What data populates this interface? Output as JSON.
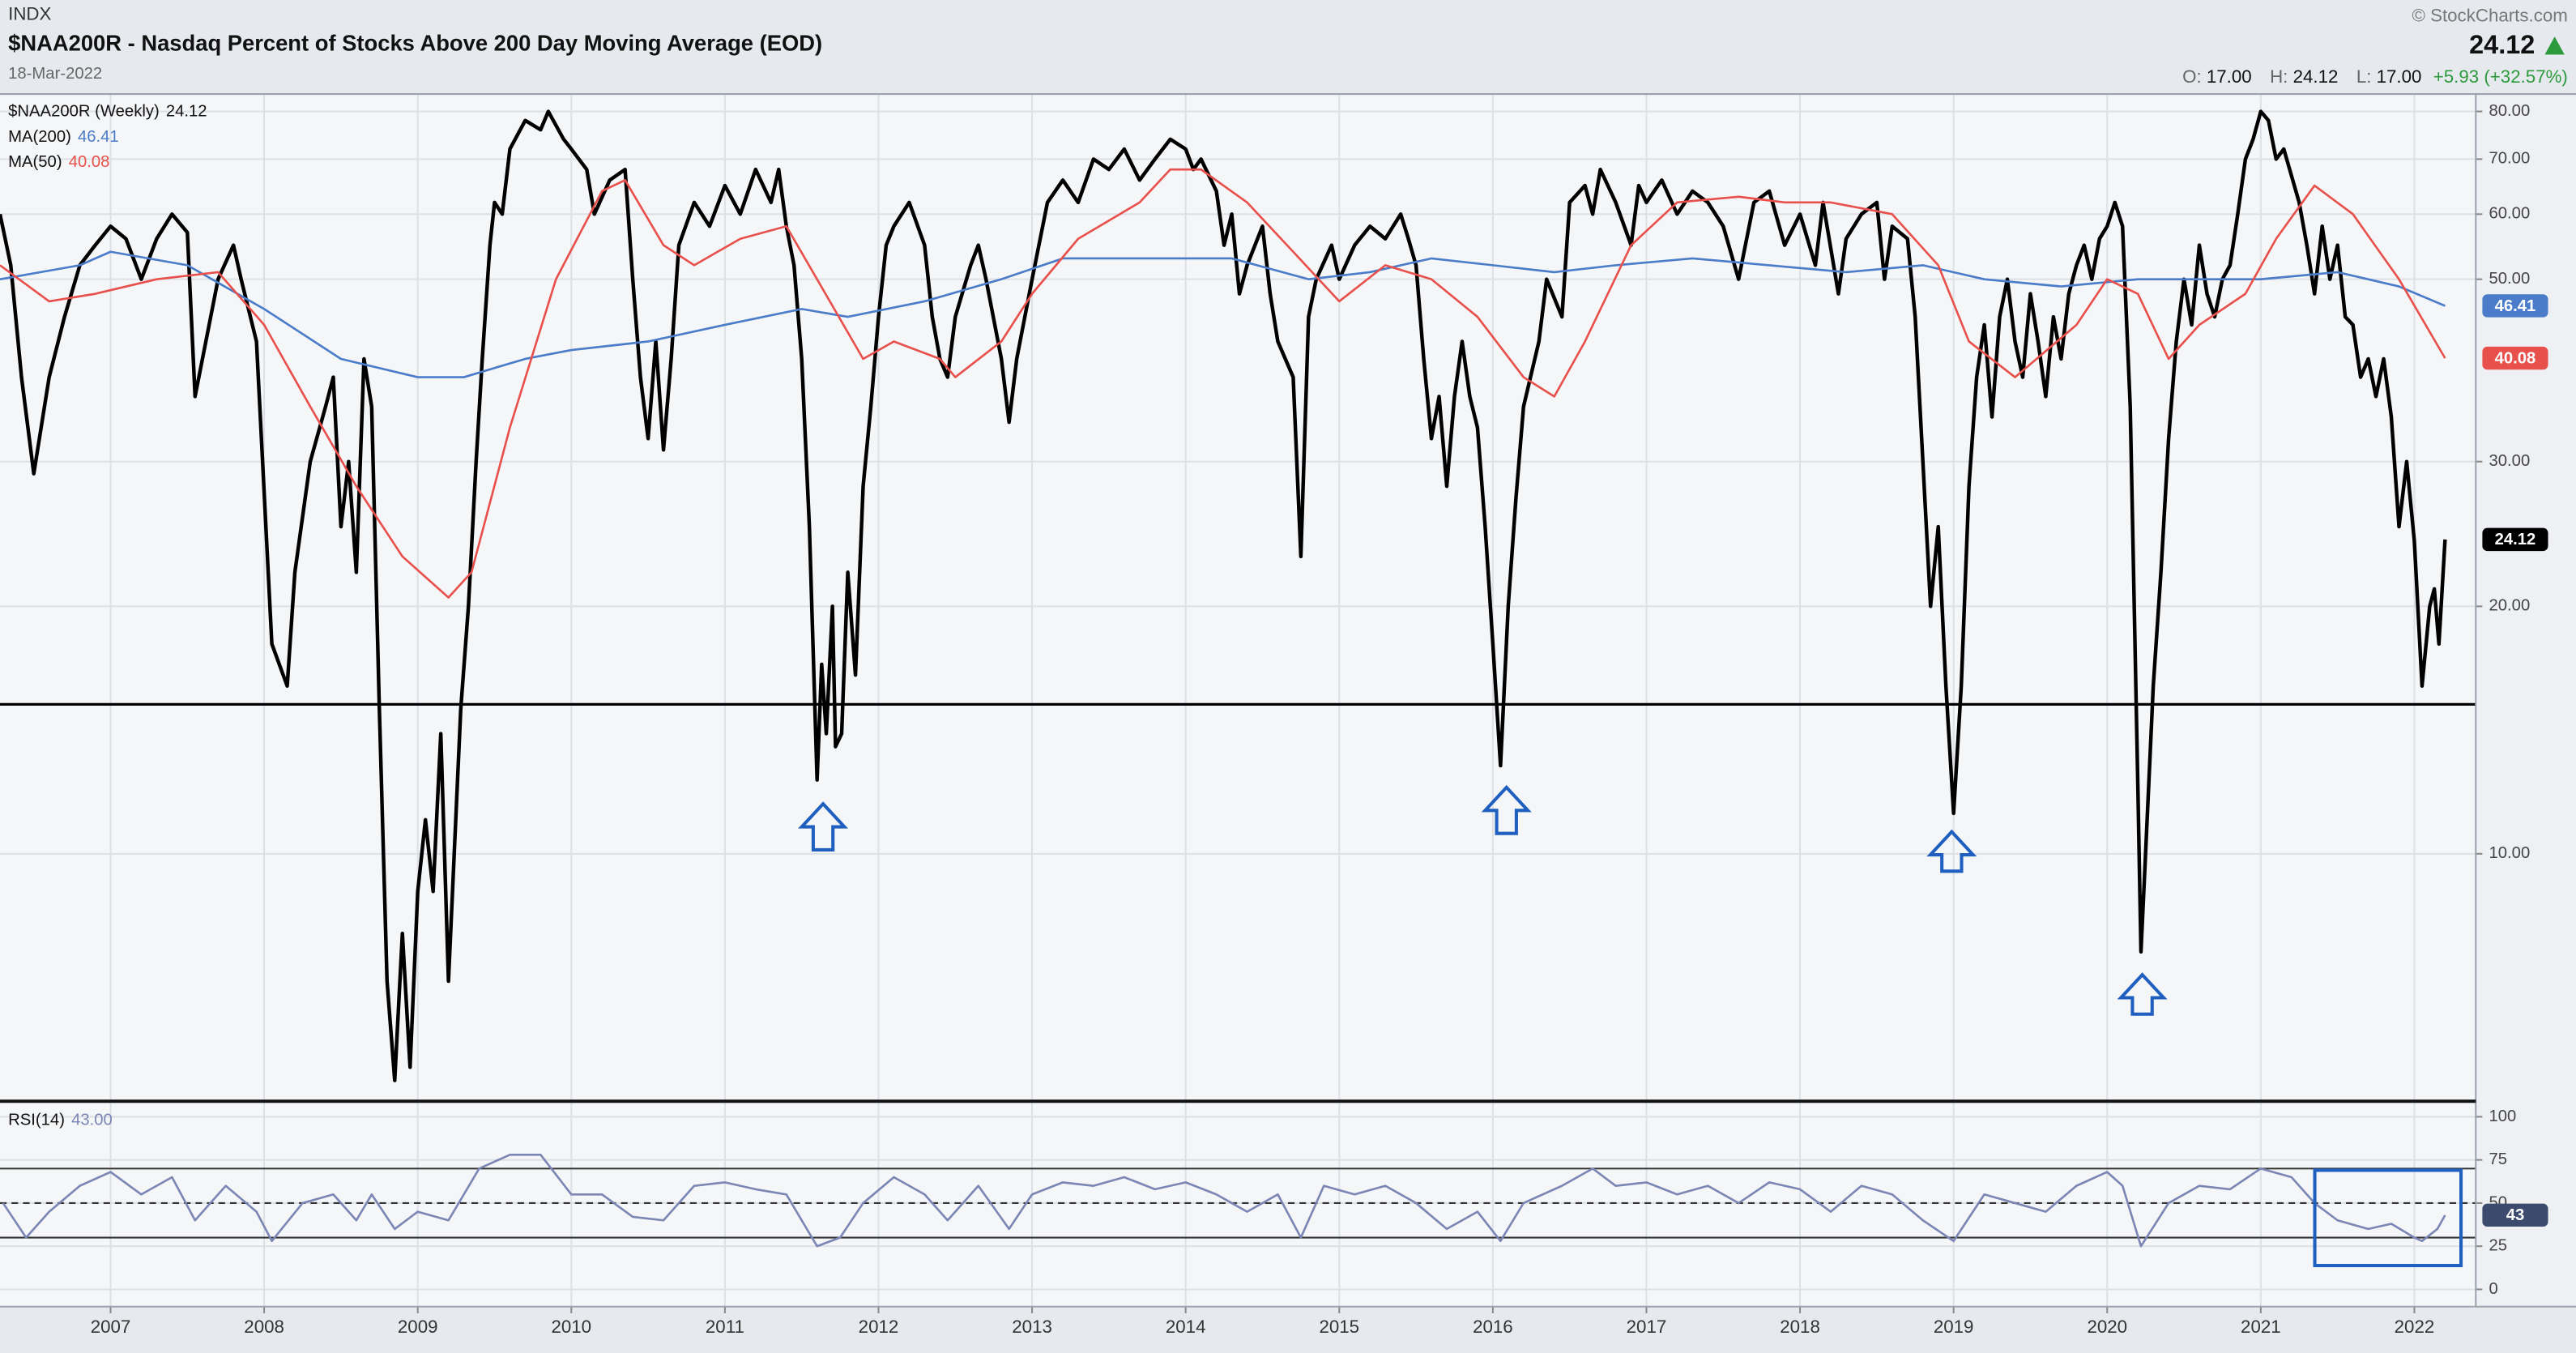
{
  "header": {
    "exchange": "INDX",
    "title": "$NAA200R - Nasdaq Percent of Stocks Above 200 Day Moving Average (EOD)",
    "date": "18-Mar-2022",
    "copyright": "© StockCharts.com",
    "open_label": "O:",
    "open": "17.00",
    "high_label": "H:",
    "high": "24.12",
    "low_label": "L:",
    "low": "17.00",
    "change": "+5.93 (+32.57%)"
  },
  "chart_data": [
    {
      "type": "line",
      "log_scale": true,
      "grid": true,
      "xlim": [
        2006.28,
        2022.4
      ],
      "xticks": [
        2007,
        2008,
        2009,
        2010,
        2011,
        2012,
        2013,
        2014,
        2015,
        2016,
        2017,
        2018,
        2019,
        2020,
        2021,
        2022
      ],
      "ylim": [
        5,
        84
      ],
      "yticks": [
        {
          "value": 10,
          "label": "10.00"
        },
        {
          "value": 20,
          "label": "20.00"
        },
        {
          "value": 30,
          "label": "30.00"
        },
        {
          "value": 50,
          "label": "50.00"
        },
        {
          "value": 60,
          "label": "60.00"
        },
        {
          "value": 70,
          "label": "70.00"
        },
        {
          "value": 80,
          "label": "80.00"
        }
      ],
      "hline": 15.2,
      "series": [
        {
          "name": "$NAA200R (Weekly)",
          "color": "#000000",
          "x": [
            2006.28,
            2006.35,
            2006.42,
            2006.5,
            2006.6,
            2006.7,
            2006.8,
            2006.9,
            2007.0,
            2007.1,
            2007.2,
            2007.3,
            2007.4,
            2007.5,
            2007.55,
            2007.7,
            2007.8,
            2007.85,
            2007.95,
            2008.05,
            2008.15,
            2008.2,
            2008.3,
            2008.4,
            2008.45,
            2008.5,
            2008.55,
            2008.6,
            2008.65,
            2008.7,
            2008.75,
            2008.8,
            2008.85,
            2008.9,
            2008.95,
            2009.0,
            2009.05,
            2009.1,
            2009.15,
            2009.2,
            2009.28,
            2009.33,
            2009.38,
            2009.42,
            2009.47,
            2009.5,
            2009.55,
            2009.6,
            2009.7,
            2009.8,
            2009.85,
            2009.95,
            2010.0,
            2010.1,
            2010.15,
            2010.25,
            2010.35,
            2010.4,
            2010.45,
            2010.5,
            2010.55,
            2010.6,
            2010.65,
            2010.7,
            2010.8,
            2010.9,
            2011.0,
            2011.1,
            2011.2,
            2011.3,
            2011.35,
            2011.4,
            2011.45,
            2011.5,
            2011.55,
            2011.6,
            2011.63,
            2011.66,
            2011.7,
            2011.72,
            2011.76,
            2011.8,
            2011.85,
            2011.9,
            2011.95,
            2012.0,
            2012.05,
            2012.1,
            2012.2,
            2012.3,
            2012.35,
            2012.4,
            2012.45,
            2012.5,
            2012.6,
            2012.65,
            2012.7,
            2012.8,
            2012.85,
            2012.9,
            2013.0,
            2013.1,
            2013.2,
            2013.3,
            2013.4,
            2013.5,
            2013.6,
            2013.7,
            2013.8,
            2013.9,
            2014.0,
            2014.05,
            2014.1,
            2014.2,
            2014.25,
            2014.3,
            2014.35,
            2014.4,
            2014.5,
            2014.55,
            2014.6,
            2014.7,
            2014.75,
            2014.8,
            2014.85,
            2014.95,
            2015.0,
            2015.1,
            2015.2,
            2015.3,
            2015.4,
            2015.45,
            2015.5,
            2015.55,
            2015.6,
            2015.65,
            2015.7,
            2015.75,
            2015.8,
            2015.85,
            2015.9,
            2015.95,
            2016.0,
            2016.05,
            2016.1,
            2016.15,
            2016.2,
            2016.3,
            2016.35,
            2016.45,
            2016.5,
            2016.6,
            2016.65,
            2016.7,
            2016.8,
            2016.9,
            2016.95,
            2017.0,
            2017.1,
            2017.2,
            2017.3,
            2017.4,
            2017.5,
            2017.6,
            2017.7,
            2017.8,
            2017.9,
            2018.0,
            2018.1,
            2018.15,
            2018.25,
            2018.3,
            2018.4,
            2018.5,
            2018.55,
            2018.6,
            2018.7,
            2018.75,
            2018.8,
            2018.85,
            2018.9,
            2018.95,
            2019.0,
            2019.05,
            2019.1,
            2019.15,
            2019.2,
            2019.25,
            2019.3,
            2019.35,
            2019.4,
            2019.45,
            2019.5,
            2019.55,
            2019.6,
            2019.65,
            2019.7,
            2019.75,
            2019.8,
            2019.85,
            2019.9,
            2019.95,
            2020.0,
            2020.05,
            2020.1,
            2020.15,
            2020.2,
            2020.22,
            2020.25,
            2020.3,
            2020.35,
            2020.4,
            2020.45,
            2020.5,
            2020.55,
            2020.6,
            2020.65,
            2020.7,
            2020.75,
            2020.8,
            2020.85,
            2020.9,
            2020.95,
            2021.0,
            2021.05,
            2021.1,
            2021.15,
            2021.25,
            2021.3,
            2021.35,
            2021.4,
            2021.45,
            2021.5,
            2021.55,
            2021.6,
            2021.65,
            2021.7,
            2021.75,
            2021.8,
            2021.85,
            2021.9,
            2021.95,
            2022.0,
            2022.05,
            2022.1,
            2022.13,
            2022.16,
            2022.2
          ],
          "values": [
            60,
            52,
            38,
            29,
            38,
            45,
            52,
            55,
            58,
            56,
            50,
            56,
            60,
            57,
            36,
            50,
            55,
            50,
            42,
            18,
            16,
            22,
            30,
            35,
            38,
            25,
            30,
            22,
            40,
            35,
            15,
            7,
            5.3,
            8,
            5.5,
            9,
            11,
            9,
            14,
            7,
            15,
            20,
            30,
            40,
            55,
            62,
            60,
            72,
            78,
            76,
            80,
            74,
            72,
            68,
            60,
            66,
            68,
            50,
            38,
            32,
            42,
            31,
            40,
            55,
            62,
            58,
            65,
            60,
            68,
            62,
            68,
            58,
            52,
            40,
            25,
            12.3,
            17,
            14,
            20,
            13.5,
            14,
            22,
            16.5,
            28,
            35,
            45,
            55,
            58,
            62,
            55,
            45,
            40,
            38,
            45,
            52,
            55,
            50,
            40,
            33.5,
            40,
            50,
            62,
            66,
            62,
            70,
            68,
            72,
            66,
            70,
            74,
            72,
            68,
            70,
            64,
            55,
            60,
            48,
            52,
            58,
            48,
            42,
            38,
            23,
            45,
            50,
            55,
            50,
            55,
            58,
            56,
            60,
            56,
            52,
            40,
            32,
            36,
            28,
            36,
            42,
            36,
            33,
            25,
            18,
            12.8,
            20,
            27,
            35,
            42,
            50,
            45,
            62,
            65,
            60,
            68,
            62,
            55,
            65,
            62,
            66,
            60,
            64,
            62,
            58,
            50,
            62,
            64,
            55,
            60,
            52,
            62,
            48,
            56,
            60,
            62,
            50,
            58,
            56,
            45,
            30,
            20,
            25,
            16,
            11.2,
            16,
            28,
            38,
            44,
            34,
            45,
            50,
            42,
            38,
            48,
            42,
            36,
            45,
            40,
            48,
            52,
            55,
            50,
            56,
            58,
            62,
            58,
            35,
            12,
            7.6,
            10,
            16,
            22,
            32,
            42,
            50,
            44,
            55,
            48,
            45,
            50,
            52,
            60,
            70,
            74,
            80,
            78,
            70,
            72,
            62,
            55,
            48,
            58,
            50,
            55,
            45,
            44,
            38,
            40,
            36,
            40,
            34,
            25,
            30,
            24,
            16,
            20,
            21,
            18,
            24.12
          ]
        },
        {
          "name": "MA(200)",
          "color": "#4a7cc9",
          "x": [
            2006.28,
            2006.8,
            2007.0,
            2007.5,
            2008.0,
            2008.5,
            2009.0,
            2009.3,
            2009.7,
            2010.0,
            2010.5,
            2011.0,
            2011.5,
            2011.8,
            2012.3,
            2012.8,
            2013.2,
            2013.8,
            2014.3,
            2014.8,
            2015.2,
            2015.6,
            2016.0,
            2016.4,
            2016.8,
            2017.3,
            2017.8,
            2018.3,
            2018.8,
            2019.2,
            2019.7,
            2020.2,
            2020.6,
            2021.0,
            2021.5,
            2021.9,
            2022.2
          ],
          "values": [
            50,
            52,
            54,
            52,
            46,
            40,
            38,
            38,
            40,
            41,
            42,
            44,
            46,
            45,
            47,
            50,
            53,
            53,
            53,
            50,
            51,
            53,
            52,
            51,
            52,
            53,
            52,
            51,
            52,
            50,
            49,
            50,
            50,
            50,
            51,
            49,
            46.41
          ]
        },
        {
          "name": "MA(50)",
          "color": "#e8504c",
          "x": [
            2006.28,
            2006.6,
            2006.9,
            2007.3,
            2007.7,
            2008.0,
            2008.3,
            2008.6,
            2008.9,
            2009.2,
            2009.35,
            2009.6,
            2009.9,
            2010.2,
            2010.35,
            2010.6,
            2010.8,
            2011.1,
            2011.4,
            2011.6,
            2011.9,
            2012.1,
            2012.4,
            2012.5,
            2012.8,
            2013.0,
            2013.3,
            2013.7,
            2013.9,
            2014.1,
            2014.4,
            2014.7,
            2015.0,
            2015.3,
            2015.6,
            2015.9,
            2016.2,
            2016.4,
            2016.6,
            2016.9,
            2017.2,
            2017.6,
            2017.9,
            2018.2,
            2018.6,
            2018.9,
            2019.1,
            2019.4,
            2019.8,
            2020.0,
            2020.2,
            2020.4,
            2020.6,
            2020.9,
            2021.1,
            2021.35,
            2021.6,
            2021.9,
            2022.2
          ],
          "values": [
            52,
            47,
            48,
            50,
            51,
            44,
            35,
            28,
            23,
            20.5,
            22,
            33,
            50,
            64,
            66,
            55,
            52,
            56,
            58,
            50,
            40,
            42,
            40,
            38,
            42,
            48,
            56,
            62,
            68,
            68,
            62,
            54,
            47,
            52,
            50,
            45,
            38,
            36,
            42,
            55,
            62,
            63,
            62,
            62,
            60,
            52,
            42,
            38,
            44,
            50,
            48,
            40,
            44,
            48,
            56,
            65,
            60,
            50,
            40.08
          ]
        }
      ]
    },
    {
      "type": "line",
      "grid": true,
      "xlim": [
        2006.28,
        2022.4
      ],
      "xticks": [
        2007,
        2008,
        2009,
        2010,
        2011,
        2012,
        2013,
        2014,
        2015,
        2016,
        2017,
        2018,
        2019,
        2020,
        2021,
        2022
      ],
      "ylim": [
        -10,
        109
      ],
      "yticks": [
        0,
        25,
        50,
        75,
        100
      ],
      "levels": [
        30,
        70
      ],
      "midline": 50,
      "series": [
        {
          "name": "RSI(14)",
          "color": "#7b86b4",
          "tag_color": "#3c4a6e",
          "legend_value": "43.00",
          "x": [
            2006.3,
            2006.45,
            2006.6,
            2006.8,
            2007.0,
            2007.2,
            2007.4,
            2007.55,
            2007.75,
            2007.95,
            2008.05,
            2008.25,
            2008.45,
            2008.6,
            2008.7,
            2008.85,
            2009.0,
            2009.2,
            2009.4,
            2009.6,
            2009.8,
            2010.0,
            2010.2,
            2010.4,
            2010.6,
            2010.8,
            2011.0,
            2011.2,
            2011.4,
            2011.6,
            2011.75,
            2011.9,
            2012.1,
            2012.3,
            2012.45,
            2012.65,
            2012.85,
            2013.0,
            2013.2,
            2013.4,
            2013.6,
            2013.8,
            2014.0,
            2014.2,
            2014.4,
            2014.6,
            2014.75,
            2014.9,
            2015.1,
            2015.3,
            2015.5,
            2015.7,
            2015.9,
            2016.05,
            2016.2,
            2016.45,
            2016.65,
            2016.8,
            2017.0,
            2017.2,
            2017.4,
            2017.6,
            2017.8,
            2018.0,
            2018.2,
            2018.4,
            2018.6,
            2018.8,
            2019.0,
            2019.2,
            2019.4,
            2019.6,
            2019.8,
            2020.0,
            2020.1,
            2020.22,
            2020.4,
            2020.6,
            2020.8,
            2021.0,
            2021.2,
            2021.35,
            2021.5,
            2021.7,
            2021.85,
            2022.0,
            2022.05,
            2022.15,
            2022.2
          ],
          "values": [
            50,
            30,
            45,
            60,
            68,
            55,
            65,
            40,
            60,
            45,
            28,
            50,
            55,
            40,
            55,
            35,
            45,
            40,
            70,
            78,
            78,
            55,
            55,
            42,
            40,
            60,
            62,
            58,
            55,
            25,
            30,
            50,
            65,
            55,
            40,
            60,
            35,
            55,
            62,
            60,
            65,
            58,
            62,
            55,
            45,
            55,
            30,
            60,
            55,
            60,
            50,
            35,
            45,
            28,
            50,
            60,
            70,
            60,
            62,
            55,
            60,
            50,
            62,
            58,
            45,
            60,
            55,
            40,
            28,
            55,
            50,
            45,
            60,
            68,
            60,
            25,
            50,
            60,
            58,
            70,
            65,
            50,
            40,
            35,
            38,
            30,
            28,
            35,
            43
          ]
        }
      ]
    }
  ]
}
